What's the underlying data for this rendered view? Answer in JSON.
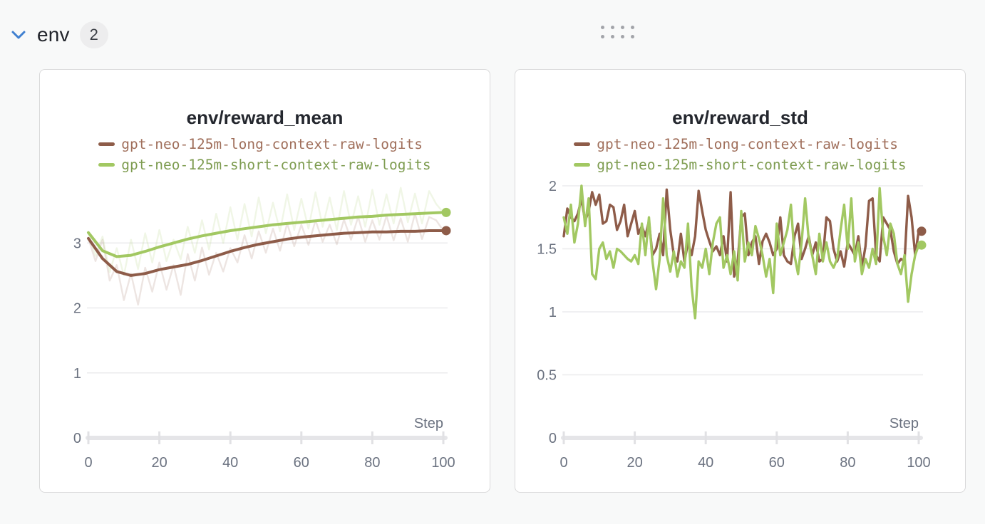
{
  "header": {
    "title": "env",
    "count": "2",
    "accent_color": "#4080d0"
  },
  "chart_data": [
    {
      "type": "line",
      "title": "env/reward_mean",
      "xlabel": "Step",
      "xlim": [
        0,
        100
      ],
      "xticks": [
        0,
        20,
        40,
        60,
        80,
        100
      ],
      "ylim": [
        0,
        3.88
      ],
      "yticks": [
        0,
        1,
        2,
        3
      ],
      "grid": true,
      "legend_position": "top-center",
      "series": [
        {
          "label": "gpt-neo-125m-long-context-raw-logits",
          "color": "#8E5C49",
          "text_color": "#A06F5B",
          "end_dot": true,
          "x_step": 4,
          "values": [
            3.07,
            2.76,
            2.56,
            2.5,
            2.53,
            2.59,
            2.63,
            2.67,
            2.73,
            2.8,
            2.87,
            2.93,
            2.98,
            3.02,
            3.06,
            3.09,
            3.11,
            3.13,
            3.15,
            3.16,
            3.17,
            3.17,
            3.18,
            3.18,
            3.19,
            3.19
          ],
          "raw_x_step": 2,
          "raw_opacity": 0.16,
          "raw": [
            3.07,
            2.72,
            3.05,
            2.42,
            2.66,
            2.12,
            2.53,
            2.05,
            2.62,
            2.25,
            2.7,
            2.28,
            2.66,
            2.2,
            2.83,
            2.42,
            2.93,
            2.51,
            2.85,
            2.56,
            2.92,
            2.7,
            3.12,
            2.76,
            3.18,
            2.85,
            3.22,
            2.88,
            3.3,
            2.95,
            3.28,
            2.97,
            3.35,
            3.02,
            3.28,
            2.98,
            3.36,
            3.05,
            3.4,
            3.02,
            3.35,
            3.05,
            3.42,
            3.04,
            3.38,
            3.02,
            3.45,
            3.06,
            3.4,
            3.35,
            3.19
          ]
        },
        {
          "label": "gpt-neo-125m-short-context-raw-logits",
          "color": "#A2C862",
          "text_color": "#7E9C50",
          "end_dot": true,
          "x_step": 4,
          "values": [
            3.16,
            2.88,
            2.79,
            2.81,
            2.87,
            2.94,
            3.0,
            3.06,
            3.11,
            3.15,
            3.19,
            3.22,
            3.25,
            3.28,
            3.3,
            3.32,
            3.34,
            3.36,
            3.38,
            3.4,
            3.41,
            3.43,
            3.44,
            3.45,
            3.46,
            3.47
          ],
          "raw_x_step": 2,
          "raw_opacity": 0.16,
          "raw": [
            3.16,
            2.8,
            3.1,
            2.55,
            2.92,
            2.5,
            3.05,
            2.6,
            3.15,
            2.7,
            3.2,
            2.72,
            3.05,
            2.75,
            3.25,
            2.85,
            3.35,
            2.9,
            3.45,
            3.0,
            3.55,
            3.05,
            3.6,
            3.1,
            3.7,
            3.15,
            3.62,
            3.18,
            3.75,
            3.2,
            3.68,
            3.22,
            3.78,
            3.25,
            3.7,
            3.2,
            3.8,
            3.28,
            3.72,
            3.25,
            3.82,
            3.28,
            3.75,
            3.3,
            3.85,
            3.32,
            3.76,
            3.3,
            3.8,
            3.6,
            3.47
          ]
        }
      ]
    },
    {
      "type": "line",
      "title": "env/reward_std",
      "xlabel": "Step",
      "xlim": [
        0,
        100
      ],
      "xticks": [
        0,
        20,
        40,
        60,
        80,
        100
      ],
      "ylim": [
        0,
        2.0
      ],
      "yticks": [
        0,
        0.5,
        1,
        1.5,
        2
      ],
      "grid": true,
      "legend_position": "top-center",
      "series": [
        {
          "label": "gpt-neo-125m-long-context-raw-logits",
          "color": "#8E5C49",
          "text_color": "#A06F5B",
          "end_dot": true,
          "x_step": 1,
          "values": [
            1.6,
            1.82,
            1.75,
            1.72,
            1.78,
            1.9,
            1.72,
            1.8,
            1.95,
            1.85,
            1.93,
            1.7,
            1.72,
            1.85,
            1.83,
            1.65,
            1.72,
            1.85,
            1.6,
            1.7,
            1.8,
            1.62,
            1.68,
            1.6,
            1.72,
            1.45,
            1.5,
            1.62,
            1.45,
            1.97,
            1.65,
            1.45,
            1.4,
            1.62,
            1.4,
            1.55,
            1.45,
            1.6,
            1.96,
            1.8,
            1.65,
            1.56,
            1.48,
            1.52,
            1.45,
            1.6,
            1.4,
            1.95,
            1.28,
            1.4,
            1.75,
            1.78,
            1.45,
            1.55,
            1.6,
            1.38,
            1.56,
            1.62,
            1.55,
            1.45,
            1.5,
            1.75,
            1.45,
            1.4,
            1.38,
            1.6,
            1.7,
            1.42,
            1.5,
            1.6,
            1.45,
            1.55,
            1.4,
            1.42,
            1.75,
            1.72,
            1.5,
            1.4,
            1.48,
            1.36,
            1.55,
            1.5,
            1.45,
            1.6,
            1.35,
            1.52,
            1.88,
            1.9,
            1.45,
            1.4,
            1.75,
            1.7,
            1.65,
            1.48,
            1.38,
            1.42,
            1.4,
            1.92,
            1.75,
            1.45,
            1.64
          ]
        },
        {
          "label": "gpt-neo-125m-short-context-raw-logits",
          "color": "#A2C862",
          "text_color": "#7E9C50",
          "end_dot": true,
          "x_step": 1,
          "values": [
            1.75,
            1.62,
            1.85,
            1.55,
            1.7,
            2.0,
            1.68,
            1.9,
            1.3,
            1.26,
            1.5,
            1.55,
            1.42,
            1.48,
            1.35,
            1.5,
            1.48,
            1.45,
            1.42,
            1.4,
            1.45,
            1.38,
            1.7,
            1.45,
            1.75,
            1.4,
            1.18,
            1.42,
            1.9,
            1.45,
            1.32,
            1.48,
            1.28,
            1.4,
            1.35,
            1.7,
            1.2,
            0.95,
            1.4,
            1.35,
            1.5,
            1.3,
            1.55,
            1.7,
            1.75,
            1.35,
            1.45,
            1.3,
            1.48,
            1.25,
            1.8,
            1.4,
            1.55,
            1.45,
            1.68,
            1.58,
            1.45,
            1.28,
            1.42,
            1.15,
            1.7,
            1.45,
            1.55,
            1.65,
            1.85,
            1.45,
            1.3,
            1.55,
            1.9,
            1.58,
            1.45,
            1.3,
            1.62,
            1.4,
            1.55,
            1.4,
            1.35,
            1.42,
            1.65,
            1.85,
            1.5,
            1.9,
            1.4,
            1.55,
            1.3,
            1.42,
            1.35,
            1.5,
            1.38,
            1.98,
            1.6,
            1.45,
            1.7,
            1.62,
            1.38,
            1.3,
            1.45,
            1.08,
            1.3,
            1.45,
            1.53
          ]
        }
      ]
    }
  ]
}
